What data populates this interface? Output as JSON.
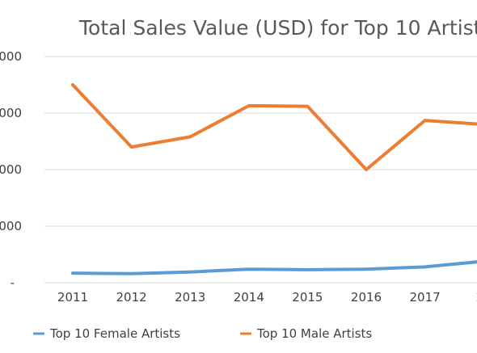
{
  "chart_data": {
    "type": "line",
    "title": "Total Sales Value (USD) for Top 10 Artist",
    "categories": [
      "2011",
      "2012",
      "2013",
      "2014",
      "2015",
      "2016",
      "2017",
      "20"
    ],
    "y_tick_labels": [
      "-",
      "000",
      "000",
      "000",
      "000"
    ],
    "grid": true,
    "legend_position": "bottom",
    "series": [
      {
        "name": "Top 10 Female Artists",
        "color": "#5b9bd5",
        "values": [
          0.17,
          0.16,
          0.19,
          0.24,
          0.23,
          0.24,
          0.28,
          0.38
        ]
      },
      {
        "name": "Top 10 Male Artists",
        "color": "#ed7d31",
        "values": [
          3.5,
          2.4,
          2.58,
          3.13,
          3.12,
          2.0,
          2.87,
          2.8
        ]
      }
    ]
  }
}
